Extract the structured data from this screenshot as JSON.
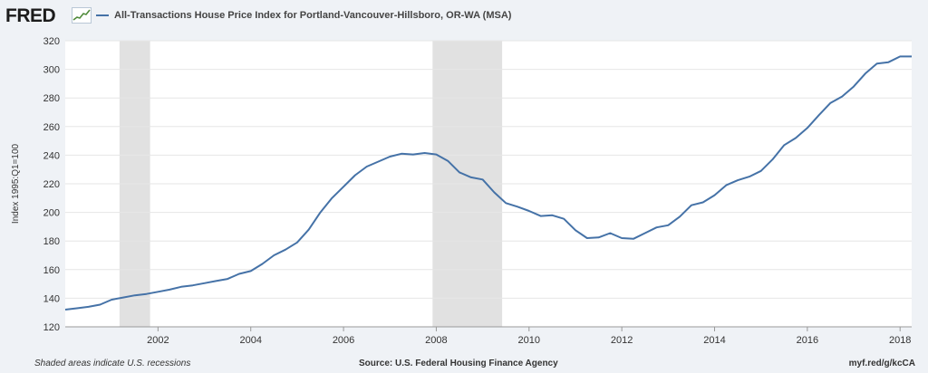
{
  "header": {
    "logo_text": "FRED",
    "legend_label": "All-Transactions House Price Index for Portland-Vancouver-Hillsboro, OR-WA (MSA)"
  },
  "footer": {
    "note": "Shaded areas indicate U.S. recessions",
    "source": "Source: U.S. Federal Housing Finance Agency",
    "link": "myf.red/g/kcCA"
  },
  "colors": {
    "line": "#4572a7",
    "recession": "#e1e1e1",
    "grid": "#e6e6e6",
    "plot_bg": "#ffffff",
    "logo_accent": "#4f8a3a"
  },
  "chart_data": {
    "type": "line",
    "title": "",
    "xlabel": "",
    "ylabel": "Index 1995:Q1=100",
    "xlim": [
      2000.0,
      2018.25
    ],
    "ylim": [
      120,
      320
    ],
    "x_ticks": [
      2002,
      2004,
      2006,
      2008,
      2010,
      2012,
      2014,
      2016,
      2018
    ],
    "x_tick_labels": [
      "2002",
      "2004",
      "2006",
      "2008",
      "2010",
      "2012",
      "2014",
      "2016",
      "2018"
    ],
    "y_ticks": [
      120,
      140,
      160,
      180,
      200,
      220,
      240,
      260,
      280,
      300,
      320
    ],
    "y_tick_labels": [
      "120",
      "140",
      "160",
      "180",
      "200",
      "220",
      "240",
      "260",
      "280",
      "300",
      "320"
    ],
    "grid": "horizontal",
    "recessions": [
      [
        2001.17,
        2001.83
      ],
      [
        2007.92,
        2009.42
      ]
    ],
    "series": [
      {
        "name": "All-Transactions House Price Index for Portland-Vancouver-Hillsboro, OR-WA (MSA)",
        "x": [
          2000.0,
          2000.25,
          2000.5,
          2000.75,
          2001.0,
          2001.25,
          2001.5,
          2001.75,
          2002.0,
          2002.25,
          2002.5,
          2002.75,
          2003.0,
          2003.25,
          2003.5,
          2003.75,
          2004.0,
          2004.25,
          2004.5,
          2004.75,
          2005.0,
          2005.25,
          2005.5,
          2005.75,
          2006.0,
          2006.25,
          2006.5,
          2006.75,
          2007.0,
          2007.25,
          2007.5,
          2007.75,
          2008.0,
          2008.25,
          2008.5,
          2008.75,
          2009.0,
          2009.25,
          2009.5,
          2009.75,
          2010.0,
          2010.25,
          2010.5,
          2010.75,
          2011.0,
          2011.25,
          2011.5,
          2011.75,
          2012.0,
          2012.25,
          2012.5,
          2012.75,
          2013.0,
          2013.25,
          2013.5,
          2013.75,
          2014.0,
          2014.25,
          2014.5,
          2014.75,
          2015.0,
          2015.25,
          2015.5,
          2015.75,
          2016.0,
          2016.25,
          2016.5,
          2016.75,
          2017.0,
          2017.25,
          2017.5,
          2017.75,
          2018.0,
          2018.25
        ],
        "values": [
          132,
          133,
          134,
          135.5,
          139,
          140.5,
          142,
          143,
          144.5,
          146,
          148,
          149,
          150.5,
          152,
          153.5,
          157,
          159,
          164,
          170,
          174,
          179,
          188,
          200,
          210,
          218,
          226,
          232,
          235.5,
          239,
          241,
          240.5,
          241.5,
          240.5,
          236,
          228,
          224.5,
          223,
          214,
          206.5,
          204,
          201,
          197.5,
          198,
          195.5,
          187.5,
          182,
          182.5,
          185.5,
          182,
          181.5,
          185.5,
          189.5,
          191,
          197,
          205,
          207,
          212,
          219,
          222.5,
          225,
          229,
          237,
          247,
          252,
          259,
          268,
          276.5,
          281,
          288,
          297,
          304,
          305,
          309,
          309
        ]
      }
    ]
  }
}
